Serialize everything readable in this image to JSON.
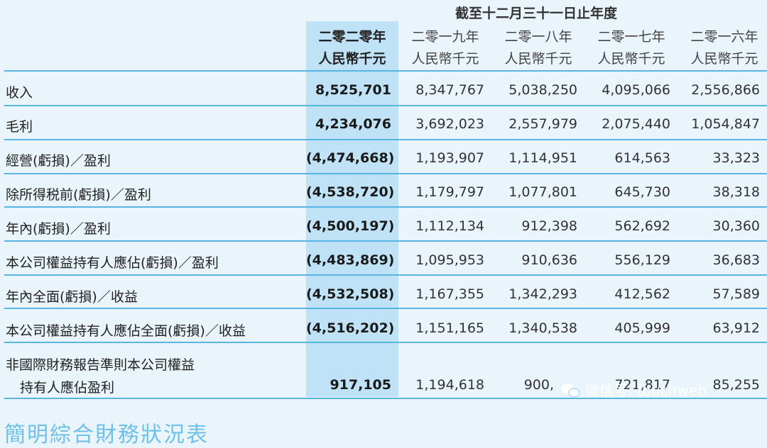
{
  "table": {
    "period_title": "截至十二月三十一日止年度",
    "columns": [
      {
        "year": "二零二零年",
        "unit": "人民幣千元"
      },
      {
        "year": "二零一九年",
        "unit": "人民幣千元"
      },
      {
        "year": "二零一八年",
        "unit": "人民幣千元"
      },
      {
        "year": "二零一七年",
        "unit": "人民幣千元"
      },
      {
        "year": "二零一六年",
        "unit": "人民幣千元"
      }
    ],
    "rows": [
      {
        "label": "收入",
        "values": [
          "8,525,701",
          "8,347,767",
          "5,038,250",
          "4,095,066",
          "2,556,866"
        ]
      },
      {
        "label": "毛利",
        "values": [
          "4,234,076",
          "3,692,023",
          "2,557,979",
          "2,075,440",
          "1,054,847"
        ]
      },
      {
        "label": "經營(虧損)／盈利",
        "values": [
          "(4,474,668)",
          "1,193,907",
          "1,114,951",
          "614,563",
          "33,323"
        ]
      },
      {
        "label": "除所得税前(虧損)／盈利",
        "values": [
          "(4,538,720)",
          "1,179,797",
          "1,077,801",
          "645,730",
          "38,318"
        ]
      },
      {
        "label": "年內(虧損)／盈利",
        "values": [
          "(4,500,197)",
          "1,112,134",
          "912,398",
          "562,692",
          "30,360"
        ]
      },
      {
        "label": "本公司權益持有人應佔(虧損)／盈利",
        "values": [
          "(4,483,869)",
          "1,095,953",
          "910,636",
          "556,129",
          "36,683"
        ]
      },
      {
        "label": "年內全面(虧損)／收益",
        "values": [
          "(4,532,508)",
          "1,167,355",
          "1,342,293",
          "412,562",
          "57,589"
        ]
      },
      {
        "label": "本公司權益持有人應佔全面(虧損)／收益",
        "values": [
          "(4,516,202)",
          "1,151,165",
          "1,340,538",
          "405,999",
          "63,912"
        ]
      },
      {
        "label_line1": "非國際財務報告準則本公司權益",
        "label_line2": "持有人應佔盈利",
        "values": [
          "917,105",
          "1,194,618",
          "900,",
          "721,817",
          "85,255"
        ]
      }
    ]
  },
  "watermark": {
    "text": "微信号: touchweb",
    "icon": "wechat-icon"
  },
  "footer_heading": "簡明綜合財務狀況表"
}
